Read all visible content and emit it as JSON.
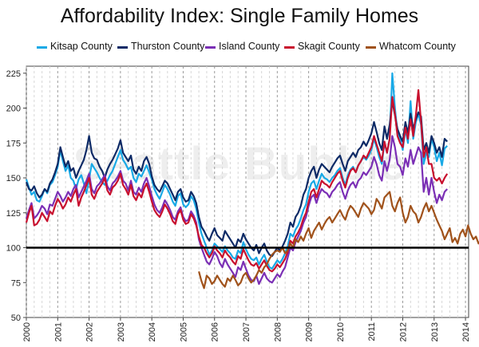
{
  "chart_data": {
    "type": "line",
    "title": "Affordability Index: Single Family Homes",
    "xlabel": "",
    "ylabel": "",
    "xlim": [
      2000,
      2014.1
    ],
    "ylim": [
      50,
      230
    ],
    "yticks": [
      50,
      75,
      100,
      125,
      150,
      175,
      200,
      225
    ],
    "xticks": [
      "2000",
      "2001",
      "2002",
      "2003",
      "2004",
      "2005",
      "2006",
      "2007",
      "2008",
      "2009",
      "2010",
      "2011",
      "2012",
      "2013",
      "2014"
    ],
    "reference_line": 100,
    "grid": "vertical dashed, yearly minor",
    "legend_position": "top",
    "watermark": "Seattle Bubble",
    "series": [
      {
        "name": "Kitsap County",
        "color": "#19a9e6",
        "start_year": 2000,
        "values": [
          149,
          143,
          138,
          140,
          134,
          133,
          137,
          142,
          139,
          145,
          147,
          152,
          158,
          170,
          162,
          155,
          159,
          150,
          148,
          142,
          149,
          152,
          146,
          139,
          149,
          160,
          157,
          154,
          150,
          147,
          145,
          148,
          152,
          155,
          160,
          165,
          170,
          163,
          160,
          156,
          158,
          150,
          147,
          153,
          151,
          155,
          159,
          154,
          149,
          142,
          138,
          135,
          140,
          145,
          142,
          138,
          133,
          130,
          137,
          139,
          131,
          129,
          131,
          137,
          134,
          128,
          118,
          110,
          105,
          100,
          95,
          98,
          103,
          101,
          99,
          97,
          101,
          98,
          96,
          93,
          92,
          98,
          96,
          104,
          99,
          95,
          92,
          91,
          93,
          88,
          92,
          95,
          90,
          86,
          85,
          88,
          91,
          89,
          92,
          96,
          101,
          110,
          108,
          113,
          116,
          121,
          127,
          131,
          140,
          146,
          148,
          142,
          148,
          153,
          150,
          149,
          147,
          150,
          152,
          155,
          157,
          150,
          145,
          152,
          156,
          158,
          154,
          159,
          162,
          165,
          163,
          166,
          170,
          178,
          172,
          165,
          160,
          175,
          168,
          178,
          225,
          200,
          182,
          178,
          170,
          185,
          175,
          205,
          178,
          190,
          196,
          188,
          160,
          168,
          165,
          178,
          172,
          162,
          168,
          159,
          171,
          173
        ]
      },
      {
        "name": "Thurston County",
        "color": "#0d2a66",
        "start_year": 2000,
        "values": [
          147,
          142,
          141,
          144,
          139,
          136,
          138,
          142,
          140,
          146,
          149,
          154,
          160,
          172,
          165,
          158,
          162,
          155,
          157,
          150,
          155,
          159,
          163,
          170,
          180,
          168,
          164,
          163,
          158,
          155,
          150,
          156,
          160,
          163,
          167,
          171,
          177,
          168,
          165,
          162,
          166,
          156,
          153,
          158,
          155,
          162,
          165,
          160,
          151,
          145,
          142,
          140,
          144,
          148,
          146,
          142,
          138,
          134,
          140,
          142,
          136,
          133,
          134,
          140,
          137,
          132,
          122,
          115,
          112,
          108,
          105,
          110,
          114,
          109,
          107,
          105,
          112,
          109,
          106,
          103,
          100,
          106,
          104,
          110,
          106,
          103,
          100,
          98,
          102,
          96,
          100,
          103,
          98,
          95,
          94,
          97,
          100,
          98,
          101,
          105,
          110,
          118,
          115,
          122,
          125,
          130,
          138,
          142,
          150,
          155,
          158,
          150,
          156,
          160,
          158,
          156,
          154,
          158,
          161,
          164,
          166,
          160,
          155,
          162,
          165,
          168,
          165,
          170,
          172,
          176,
          173,
          177,
          182,
          190,
          183,
          175,
          170,
          187,
          178,
          188,
          205,
          195,
          185,
          180,
          176,
          190,
          182,
          196,
          185,
          192,
          197,
          194,
          170,
          175,
          168,
          180,
          175,
          168,
          172,
          165,
          178,
          176
        ]
      },
      {
        "name": "Island County",
        "color": "#7b2fb5",
        "start_year": 2000,
        "values": [
          null,
          null,
          null,
          null,
          null,
          null,
          null,
          null,
          null,
          null,
          null,
          null,
          null,
          null,
          null,
          null,
          null,
          null,
          null,
          null,
          null,
          null,
          null,
          null,
          null,
          null,
          null,
          null,
          null,
          null,
          null,
          null,
          null,
          null,
          null,
          null,
          null,
          null,
          null,
          null,
          null,
          null,
          null,
          null,
          null,
          null,
          null,
          null,
          null,
          null,
          null,
          null,
          null,
          null,
          null,
          null,
          null,
          null,
          null,
          null,
          null,
          null,
          null,
          null,
          null,
          null,
          null,
          null,
          null,
          null,
          null,
          null,
          null,
          null,
          null,
          null,
          null,
          null,
          null,
          null,
          null,
          null,
          null,
          null,
          null,
          null,
          null,
          null,
          null,
          null,
          null,
          null,
          null,
          null,
          null,
          null,
          null,
          null,
          null,
          null,
          null,
          null,
          null,
          null,
          null,
          null,
          null,
          null,
          null,
          null,
          null,
          null,
          null,
          null,
          null,
          null,
          null,
          null,
          null,
          null,
          null,
          null,
          null,
          null,
          null,
          null,
          null,
          null,
          null,
          null,
          null,
          null,
          null,
          null,
          null,
          null,
          null,
          null,
          null,
          null,
          null,
          null,
          null,
          null,
          null,
          null,
          null,
          null,
          null,
          null,
          null,
          null,
          null,
          null,
          null,
          null,
          null,
          null,
          null,
          null,
          null,
          null
        ]
      },
      {
        "name": "Skagit County",
        "color": "#c8102e",
        "start_year": 2000,
        "values": [
          118,
          125,
          130,
          116,
          117,
          120,
          125,
          122,
          119,
          126,
          124,
          130,
          135,
          132,
          128,
          131,
          136,
          133,
          138,
          142,
          130,
          136,
          140,
          145,
          150,
          138,
          135,
          140,
          143,
          146,
          150,
          141,
          138,
          143,
          145,
          148,
          153,
          145,
          142,
          138,
          145,
          137,
          134,
          139,
          136,
          142,
          146,
          140,
          133,
          127,
          124,
          122,
          126,
          131,
          128,
          124,
          119,
          117,
          124,
          127,
          120,
          117,
          118,
          124,
          121,
          116,
          108,
          102,
          100,
          96,
          93,
          96,
          101,
          98,
          96,
          93,
          98,
          95,
          93,
          90,
          88,
          94,
          92,
          99,
          95,
          91,
          88,
          87,
          89,
          85,
          88,
          91,
          87,
          84,
          83,
          85,
          88,
          86,
          89,
          92,
          97,
          105,
          103,
          108,
          111,
          115,
          121,
          125,
          133,
          140,
          142,
          136,
          142,
          148,
          146,
          145,
          143,
          147,
          150,
          153,
          155,
          148,
          143,
          150,
          155,
          157,
          154,
          159,
          162,
          166,
          164,
          168,
          172,
          180,
          174,
          168,
          162,
          176,
          168,
          178,
          208,
          196,
          180,
          175,
          172,
          186,
          178,
          192,
          180,
          195,
          213,
          190,
          165,
          172,
          160,
          160,
          150,
          148,
          150,
          146,
          150,
          153
        ]
      },
      {
        "name": "Whatcom County",
        "color": "#a0521b",
        "start_year": 2000,
        "values": [
          null,
          null,
          null,
          null,
          null,
          null,
          null,
          null,
          null,
          null,
          null,
          null,
          null,
          null,
          null,
          null,
          null,
          null,
          null,
          null,
          null,
          null,
          null,
          null,
          null,
          null,
          null,
          null,
          null,
          null,
          null,
          null,
          null,
          null,
          null,
          null,
          null,
          null,
          null,
          null,
          null,
          null,
          null,
          null,
          null,
          null,
          null,
          null,
          null,
          null,
          null,
          null,
          null,
          null,
          null,
          null,
          null,
          null,
          null,
          null,
          null,
          null,
          null,
          null,
          null,
          null,
          null,
          null,
          null,
          null,
          null,
          null,
          null,
          null,
          null,
          null,
          null,
          null,
          null,
          null,
          null,
          null,
          null,
          null,
          null,
          null,
          null,
          null,
          null,
          null,
          null,
          null,
          null,
          null,
          null,
          null,
          null,
          null,
          null,
          null,
          null,
          null,
          null,
          null,
          null,
          null,
          null,
          null,
          null,
          null,
          null,
          null,
          null,
          null,
          null,
          null,
          null,
          null,
          null,
          null,
          null,
          null,
          null,
          null,
          null,
          null,
          null,
          null,
          null,
          null,
          null,
          null,
          null,
          null,
          null,
          null,
          null,
          null,
          null,
          null,
          null,
          null,
          null,
          null,
          null,
          null,
          null,
          null,
          null,
          null,
          null,
          null,
          null,
          null,
          null,
          null,
          null,
          null,
          null,
          null,
          null,
          null
        ]
      }
    ]
  }
}
